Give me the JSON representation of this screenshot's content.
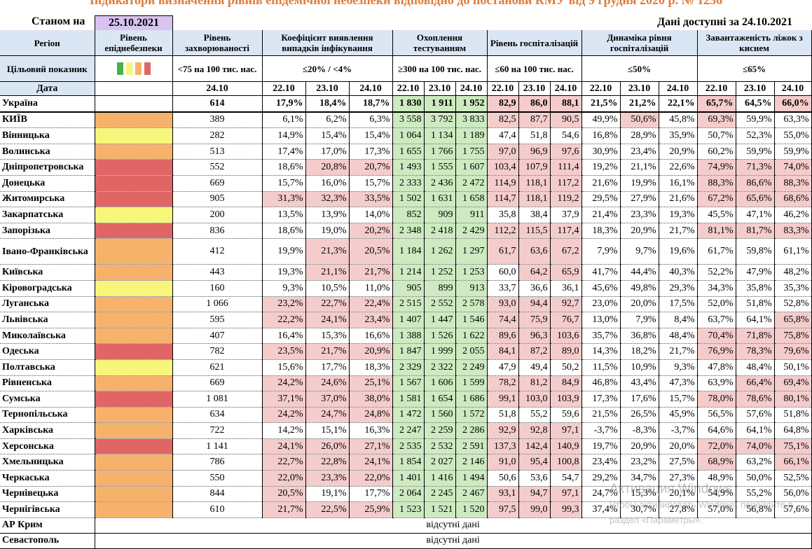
{
  "title": "Індикатори визначення рівнів епідемічної небезпеки відповідно до постанови КМУ від 9 грудня 2020 р. № 1236",
  "as_of_label": "Станом на",
  "as_of_date": "25.10.2021",
  "data_available": "Дані доступні за  24.10.2021",
  "headers": {
    "region": "Регіон",
    "level": "Рівень епіднебезпеки",
    "incidence": "Рівень захворюваності",
    "detection": "Коефіцієнт виявлення випадків інфікування",
    "testing": "Охоплення тестуванням",
    "hosp": "Рівень госпіталізацій",
    "dyn": "Динаміка рівня госпіталізацій",
    "beds": "Завантаженість ліжок з киснем"
  },
  "target": {
    "label": "Цільовий показник",
    "incidence": "<75 на 100 тис. нас.",
    "detection": "≤20% / <4%",
    "testing": "≥300 на 100 тис. нас.",
    "hosp": "≤60 на 100 тис. нас.",
    "dyn": "≤50%",
    "beds": "≤65%",
    "swatch_colors": [
      "#49b04a",
      "#f7f57a",
      "#f6b26b",
      "#e06666"
    ]
  },
  "date_row": {
    "label": "Дата",
    "incidence_date": "24.10",
    "dates": [
      "22.10",
      "23.10",
      "24.10"
    ]
  },
  "colors": {
    "orange": "#f6b26b",
    "yellow": "#f7f57a",
    "red": "#e06666",
    "pink": "#f4cccc",
    "green": "#cdeac0",
    "header": "#dae6f3",
    "date_box": "#d9c3f0"
  },
  "ukraine": {
    "name": "Україна",
    "inc": "614",
    "det": [
      "17,9%",
      "18,4%",
      "18,7%"
    ],
    "tst": [
      "1 830",
      "1 911",
      "1 952"
    ],
    "hos": [
      "82,9",
      "86,0",
      "88,1"
    ],
    "dyn": [
      "21,5%",
      "21,2%",
      "22,1%"
    ],
    "bed": [
      "65,7%",
      "64,5%",
      "66,0%"
    ]
  },
  "rows": [
    {
      "name": "КИЇВ",
      "lvl": "orange",
      "inc": "389",
      "det": [
        "6,1%",
        "6,2%",
        "6,3%"
      ],
      "tst": [
        "3 558",
        "3 792",
        "3 833"
      ],
      "hos": [
        "82,5",
        "87,7",
        "90,5"
      ],
      "dyn": [
        "49,9%",
        "50,6%",
        "45,8%"
      ],
      "bed": [
        "69,3%",
        "59,9%",
        "63,3%"
      ]
    },
    {
      "name": "Вінницька",
      "lvl": "yellow",
      "inc": "282",
      "det": [
        "14,9%",
        "15,4%",
        "15,4%"
      ],
      "tst": [
        "1 064",
        "1 134",
        "1 189"
      ],
      "hos": [
        "47,4",
        "51,8",
        "54,6"
      ],
      "dyn": [
        "16,8%",
        "28,9%",
        "35,9%"
      ],
      "bed": [
        "50,7%",
        "52,3%",
        "55,0%"
      ]
    },
    {
      "name": "Волинська",
      "lvl": "orange",
      "inc": "513",
      "det": [
        "17,4%",
        "17,0%",
        "17,3%"
      ],
      "tst": [
        "1 655",
        "1 766",
        "1 755"
      ],
      "hos": [
        "97,0",
        "96,9",
        "97,6"
      ],
      "dyn": [
        "30,9%",
        "23,4%",
        "20,9%"
      ],
      "bed": [
        "60,2%",
        "59,9%",
        "59,9%"
      ]
    },
    {
      "name": "Дніпропетровська",
      "lvl": "red",
      "inc": "552",
      "det": [
        "18,6%",
        "20,8%",
        "20,7%"
      ],
      "tst": [
        "1 493",
        "1 555",
        "1 607"
      ],
      "hos": [
        "103,4",
        "107,9",
        "111,4"
      ],
      "dyn": [
        "19,2%",
        "21,1%",
        "22,6%"
      ],
      "bed": [
        "74,9%",
        "71,3%",
        "74,0%"
      ]
    },
    {
      "name": "Донецька",
      "lvl": "red",
      "inc": "669",
      "det": [
        "15,7%",
        "16,0%",
        "15,7%"
      ],
      "tst": [
        "2 333",
        "2 436",
        "2 472"
      ],
      "hos": [
        "114,9",
        "118,1",
        "117,2"
      ],
      "dyn": [
        "21,6%",
        "19,9%",
        "16,1%"
      ],
      "bed": [
        "88,3%",
        "86,6%",
        "88,3%"
      ]
    },
    {
      "name": "Житомирська",
      "lvl": "red",
      "inc": "905",
      "det": [
        "31,3%",
        "32,3%",
        "33,5%"
      ],
      "tst": [
        "1 502",
        "1 631",
        "1 658"
      ],
      "hos": [
        "114,7",
        "118,1",
        "119,2"
      ],
      "dyn": [
        "29,5%",
        "27,9%",
        "21,6%"
      ],
      "bed": [
        "67,2%",
        "65,6%",
        "68,6%"
      ]
    },
    {
      "name": "Закарпатська",
      "lvl": "yellow",
      "inc": "200",
      "det": [
        "13,5%",
        "13,9%",
        "14,0%"
      ],
      "tst": [
        "852",
        "909",
        "911"
      ],
      "hos": [
        "35,8",
        "38,4",
        "37,9"
      ],
      "dyn": [
        "21,4%",
        "23,3%",
        "19,3%"
      ],
      "bed": [
        "45,5%",
        "47,1%",
        "46,2%"
      ]
    },
    {
      "name": "Запорізька",
      "lvl": "red",
      "inc": "836",
      "det": [
        "18,6%",
        "19,0%",
        "20,2%"
      ],
      "tst": [
        "2 348",
        "2 418",
        "2 429"
      ],
      "hos": [
        "112,2",
        "115,5",
        "117,4"
      ],
      "dyn": [
        "18,3%",
        "20,9%",
        "21,7%"
      ],
      "bed": [
        "81,1%",
        "81,7%",
        "83,3%"
      ]
    },
    {
      "name": "Івано-Франківська",
      "lvl": "orange",
      "inc": "412",
      "det": [
        "19,9%",
        "21,3%",
        "20,5%"
      ],
      "tst": [
        "1 184",
        "1 262",
        "1 297"
      ],
      "hos": [
        "61,7",
        "63,6",
        "67,2"
      ],
      "dyn": [
        "7,9%",
        "9,7%",
        "19,6%"
      ],
      "bed": [
        "61,7%",
        "59,8%",
        "61,1%"
      ]
    },
    {
      "name": "Київська",
      "lvl": "orange",
      "inc": "443",
      "det": [
        "19,3%",
        "21,1%",
        "21,7%"
      ],
      "tst": [
        "1 214",
        "1 252",
        "1 253"
      ],
      "hos": [
        "60,0",
        "64,2",
        "65,9"
      ],
      "dyn": [
        "41,7%",
        "44,4%",
        "40,3%"
      ],
      "bed": [
        "52,2%",
        "47,9%",
        "48,2%"
      ]
    },
    {
      "name": "Кіровоградська",
      "lvl": "yellow",
      "inc": "160",
      "det": [
        "9,3%",
        "10,5%",
        "11,0%"
      ],
      "tst": [
        "905",
        "899",
        "913"
      ],
      "hos": [
        "33,7",
        "36,6",
        "36,1"
      ],
      "dyn": [
        "45,6%",
        "49,8%",
        "29,3%"
      ],
      "bed": [
        "34,3%",
        "35,8%",
        "35,3%"
      ]
    },
    {
      "name": "Луганська",
      "lvl": "orange",
      "inc": "1 066",
      "det": [
        "23,2%",
        "22,7%",
        "22,4%"
      ],
      "tst": [
        "2 515",
        "2 552",
        "2 578"
      ],
      "hos": [
        "93,0",
        "94,4",
        "92,7"
      ],
      "dyn": [
        "23,0%",
        "20,0%",
        "17,5%"
      ],
      "bed": [
        "52,0%",
        "51,8%",
        "52,8%"
      ]
    },
    {
      "name": "Львівська",
      "lvl": "orange",
      "inc": "595",
      "det": [
        "22,2%",
        "24,1%",
        "23,4%"
      ],
      "tst": [
        "1 407",
        "1 447",
        "1 546"
      ],
      "hos": [
        "74,4",
        "75,9",
        "76,7"
      ],
      "dyn": [
        "13,0%",
        "7,9%",
        "8,4%"
      ],
      "bed": [
        "63,7%",
        "64,1%",
        "65,8%"
      ]
    },
    {
      "name": "Миколаївська",
      "lvl": "orange",
      "inc": "407",
      "det": [
        "16,4%",
        "15,3%",
        "16,6%"
      ],
      "tst": [
        "1 388",
        "1 526",
        "1 622"
      ],
      "hos": [
        "89,6",
        "96,3",
        "103,6"
      ],
      "dyn": [
        "35,7%",
        "36,8%",
        "48,4%"
      ],
      "bed": [
        "70,4%",
        "71,8%",
        "75,8%"
      ]
    },
    {
      "name": "Одеська",
      "lvl": "red",
      "inc": "782",
      "det": [
        "23,5%",
        "21,7%",
        "20,9%"
      ],
      "tst": [
        "1 847",
        "1 999",
        "2 055"
      ],
      "hos": [
        "84,1",
        "87,2",
        "89,0"
      ],
      "dyn": [
        "14,3%",
        "18,2%",
        "21,7%"
      ],
      "bed": [
        "76,9%",
        "78,3%",
        "79,6%"
      ]
    },
    {
      "name": "Полтавська",
      "lvl": "yellow",
      "inc": "621",
      "det": [
        "15,6%",
        "17,7%",
        "18,3%"
      ],
      "tst": [
        "2 329",
        "2 322",
        "2 249"
      ],
      "hos": [
        "47,9",
        "49,4",
        "50,2"
      ],
      "dyn": [
        "11,5%",
        "10,9%",
        "9,3%"
      ],
      "bed": [
        "47,8%",
        "48,4%",
        "50,1%"
      ]
    },
    {
      "name": "Рівненська",
      "lvl": "orange",
      "inc": "669",
      "det": [
        "24,2%",
        "24,6%",
        "25,1%"
      ],
      "tst": [
        "1 567",
        "1 606",
        "1 599"
      ],
      "hos": [
        "78,2",
        "81,2",
        "84,9"
      ],
      "dyn": [
        "46,8%",
        "43,4%",
        "47,3%"
      ],
      "bed": [
        "63,9%",
        "66,4%",
        "69,4%"
      ]
    },
    {
      "name": "Сумська",
      "lvl": "red",
      "inc": "1 081",
      "det": [
        "37,1%",
        "37,0%",
        "38,0%"
      ],
      "tst": [
        "1 581",
        "1 654",
        "1 686"
      ],
      "hos": [
        "99,1",
        "103,0",
        "103,9"
      ],
      "dyn": [
        "17,3%",
        "17,6%",
        "15,7%"
      ],
      "bed": [
        "78,0%",
        "78,6%",
        "80,1%"
      ]
    },
    {
      "name": "Тернопільська",
      "lvl": "orange",
      "inc": "634",
      "det": [
        "24,2%",
        "24,7%",
        "24,8%"
      ],
      "tst": [
        "1 472",
        "1 560",
        "1 572"
      ],
      "hos": [
        "51,8",
        "55,2",
        "59,6"
      ],
      "dyn": [
        "21,5%",
        "26,5%",
        "45,9%"
      ],
      "bed": [
        "56,5%",
        "57,6%",
        "51,8%"
      ]
    },
    {
      "name": "Харківська",
      "lvl": "orange",
      "inc": "722",
      "det": [
        "14,2%",
        "15,1%",
        "16,3%"
      ],
      "tst": [
        "2 247",
        "2 259",
        "2 286"
      ],
      "hos": [
        "92,9",
        "92,8",
        "97,1"
      ],
      "dyn": [
        "-3,7%",
        "-8,3%",
        "-3,7%"
      ],
      "bed": [
        "64,6%",
        "64,1%",
        "64,8%"
      ]
    },
    {
      "name": "Херсонська",
      "lvl": "red",
      "inc": "1 141",
      "det": [
        "24,1%",
        "26,0%",
        "27,1%"
      ],
      "tst": [
        "2 535",
        "2 532",
        "2 591"
      ],
      "hos": [
        "137,3",
        "142,4",
        "140,9"
      ],
      "dyn": [
        "19,7%",
        "20,9%",
        "20,0%"
      ],
      "bed": [
        "72,0%",
        "74,0%",
        "75,1%"
      ]
    },
    {
      "name": "Хмельницька",
      "lvl": "orange",
      "inc": "786",
      "det": [
        "22,7%",
        "22,8%",
        "24,1%"
      ],
      "tst": [
        "1 854",
        "2 027",
        "2 146"
      ],
      "hos": [
        "91,0",
        "95,4",
        "100,8"
      ],
      "dyn": [
        "23,4%",
        "23,2%",
        "27,5%"
      ],
      "bed": [
        "68,9%",
        "63,2%",
        "66,1%"
      ]
    },
    {
      "name": "Черкаська",
      "lvl": "orange",
      "inc": "550",
      "det": [
        "22,0%",
        "23,3%",
        "22,0%"
      ],
      "tst": [
        "1 401",
        "1 416",
        "1 494"
      ],
      "hos": [
        "50,6",
        "53,6",
        "54,7"
      ],
      "dyn": [
        "29,2%",
        "34,7%",
        "27,3%"
      ],
      "bed": [
        "48,9%",
        "50,0%",
        "52,5%"
      ]
    },
    {
      "name": "Чернівецька",
      "lvl": "orange",
      "inc": "844",
      "det": [
        "20,5%",
        "19,1%",
        "17,7%"
      ],
      "tst": [
        "2 064",
        "2 245",
        "2 467"
      ],
      "hos": [
        "93,1",
        "94,7",
        "97,1"
      ],
      "dyn": [
        "24,7%",
        "15,3%",
        "20,1%"
      ],
      "bed": [
        "54,9%",
        "55,2%",
        "56,0%"
      ]
    },
    {
      "name": "Чернігівська",
      "lvl": "orange",
      "inc": "610",
      "det": [
        "21,7%",
        "22,5%",
        "25,9%"
      ],
      "tst": [
        "1 523",
        "1 521",
        "1 520"
      ],
      "hos": [
        "97,5",
        "99,0",
        "99,3"
      ],
      "dyn": [
        "37,4%",
        "30,7%",
        "27,8%"
      ],
      "bed": [
        "57,0%",
        "56,8%",
        "57,6%"
      ]
    }
  ],
  "missing_rows": [
    {
      "name": "АР Крим",
      "text": "відсутні дані"
    },
    {
      "name": "Севастополь",
      "text": "відсутні дані"
    }
  ],
  "watermark": {
    "line1": "Активация Windows",
    "line2": "Чтобы активировать Windows, перейдите в раздел «Параметры»."
  }
}
